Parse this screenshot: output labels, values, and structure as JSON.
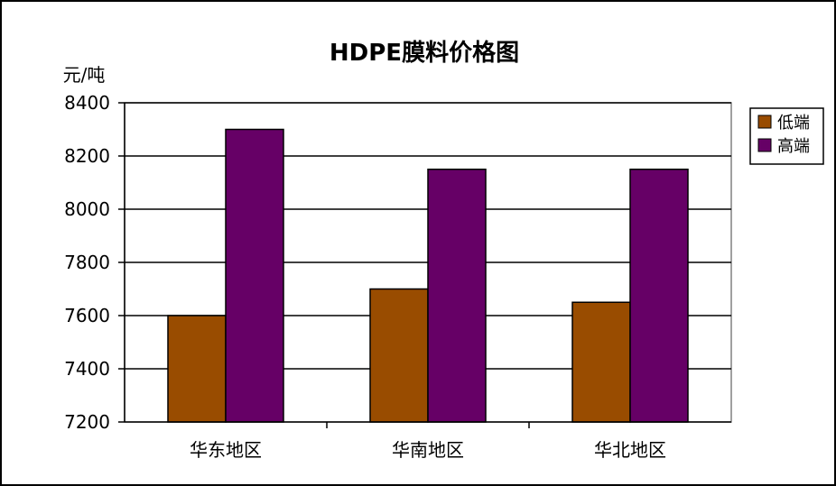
{
  "chart_data": {
    "type": "bar",
    "title": "HDPE膜料价格图",
    "ylabel": "元/吨",
    "xlabel": "",
    "categories": [
      "华东地区",
      "华南地区",
      "华北地区"
    ],
    "series": [
      {
        "name": "低端",
        "values": [
          7600,
          7700,
          7650
        ],
        "color": "#994C00"
      },
      {
        "name": "高端",
        "values": [
          8300,
          8150,
          8150
        ],
        "color": "#660066"
      }
    ],
    "ylim": [
      7200,
      8400
    ],
    "yticks": [
      7200,
      7400,
      7600,
      7800,
      8000,
      8200,
      8400
    ],
    "grid": true,
    "legend_position": "right",
    "plot_background": "#ffffff",
    "frame_color": "#808080"
  }
}
